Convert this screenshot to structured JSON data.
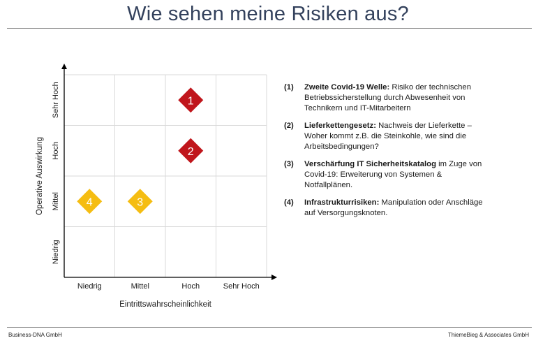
{
  "slide": {
    "title": "Wie sehen meine Risiken aus?",
    "footer_left": "Business-DNA GmbH",
    "footer_right": "ThiemeBieg & Associates GmbH"
  },
  "matrix": {
    "x_axis_title": "Eintrittswahrscheinlichkeit",
    "y_axis_title": "Operative Auswirkung",
    "x_levels": [
      "Niedrig",
      "Mittel",
      "Hoch",
      "Sehr Hoch"
    ],
    "y_levels": [
      "Niedrig",
      "Mittel",
      "Hoch",
      "Sehr Hoch"
    ],
    "risks": [
      {
        "label": "1",
        "x_level": 3,
        "y_level": 4,
        "color": "#c0161c"
      },
      {
        "label": "2",
        "x_level": 3,
        "y_level": 3,
        "color": "#c0161c"
      },
      {
        "label": "3",
        "x_level": 2,
        "y_level": 2,
        "color": "#f5bd12"
      },
      {
        "label": "4",
        "x_level": 1,
        "y_level": 2,
        "color": "#f5bd12"
      }
    ],
    "grid_color": "#d9d9d9",
    "axis_color": "#000000"
  },
  "legend": [
    {
      "num": "(1)",
      "head": "Zweite Covid-19 Welle:",
      "text": " Risiko der technischen Betriebssicherstellung durch Abwesenheit von Technikern und IT-Mitarbeitern"
    },
    {
      "num": "(2)",
      "head": "Lieferkettengesetz:",
      "text": " Nachweis der Lieferkette – Woher kommt z.B. die Steinkohle, wie sind die Arbeitsbedingungen?"
    },
    {
      "num": "(3)",
      "head": "Verschärfung IT Sicherheitskatalog",
      "text": " im Zuge von Covid-19: Erweiterung von Systemen & Notfallplänen."
    },
    {
      "num": "(4)",
      "head": "Infrastrukturrisiken:",
      "text": "  Manipulation oder Anschläge auf Versorgungsknoten."
    }
  ]
}
